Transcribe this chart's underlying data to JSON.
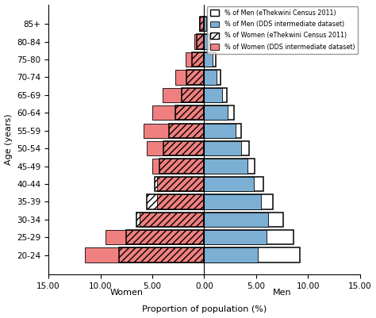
{
  "age_groups": [
    "20-24",
    "25-29",
    "30-34",
    "35-39",
    "40-44",
    "45-49",
    "50-54",
    "55-59",
    "60-64",
    "65-69",
    "70-74",
    "75-80",
    "80-84",
    "85+"
  ],
  "men_census": [
    9.2,
    8.6,
    7.6,
    6.6,
    5.7,
    4.9,
    4.3,
    3.6,
    2.9,
    2.2,
    1.6,
    1.1,
    0.6,
    0.3
  ],
  "men_dds": [
    5.2,
    6.0,
    6.2,
    5.5,
    4.8,
    4.2,
    3.6,
    3.0,
    2.3,
    1.7,
    1.2,
    0.8,
    0.4,
    0.2
  ],
  "women_census": [
    8.2,
    7.5,
    6.5,
    5.5,
    4.8,
    4.3,
    3.9,
    3.4,
    2.8,
    2.2,
    1.7,
    1.2,
    0.7,
    0.4
  ],
  "women_dds": [
    11.5,
    9.5,
    6.2,
    4.5,
    4.5,
    5.0,
    5.5,
    5.8,
    5.0,
    4.0,
    2.8,
    1.8,
    0.95,
    0.5
  ],
  "xlabel": "Proportion of population (%)",
  "ylabel": "Age (years)",
  "xlim": 15.0,
  "xticklabels": [
    "15.00",
    "10.00",
    "5.00",
    "0.00",
    "5.00",
    "10.00",
    "15.00"
  ],
  "women_label": "Women",
  "men_label": "Men",
  "legend_men_census": "% of Men (eThekwini Census 2011)",
  "legend_men_dds": "% of Men (DDS intermediate dataset)",
  "legend_women_census": "% of Women (eThekwini Census 2011)",
  "legend_women_dds": "% of Women (DDS intermediate dataset)",
  "color_men_dds": "#7bafd4",
  "color_women_dds": "#f08080",
  "bar_height": 0.82
}
